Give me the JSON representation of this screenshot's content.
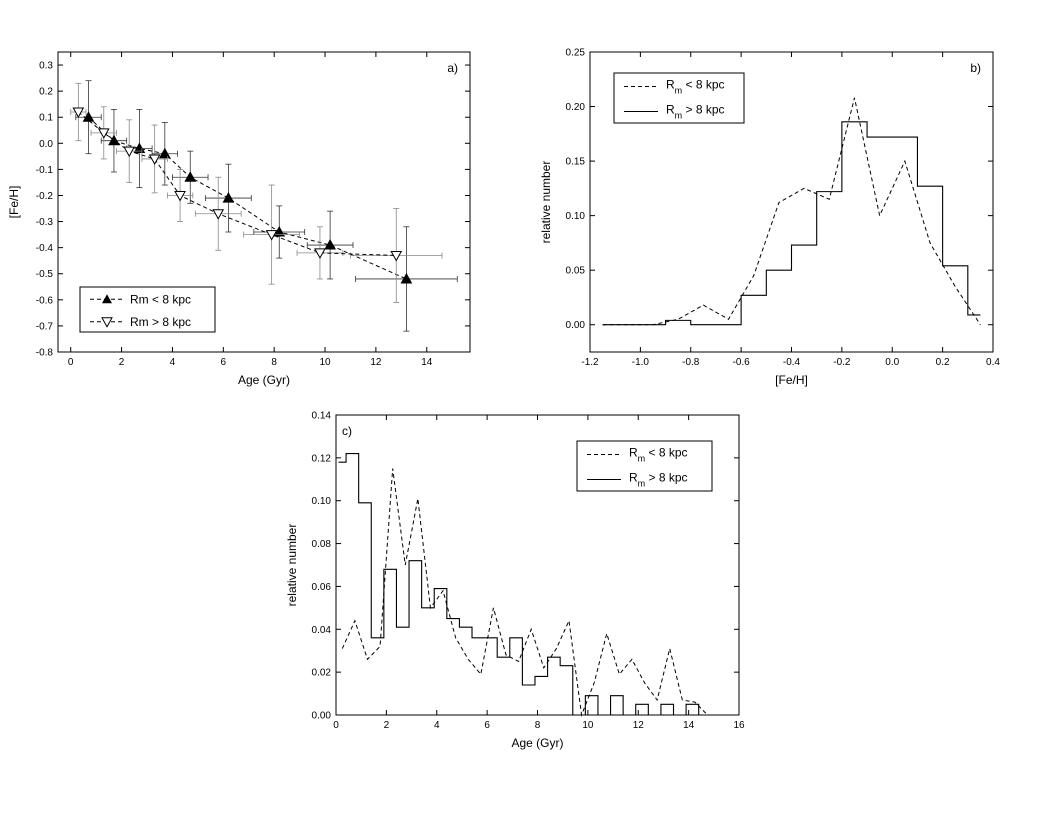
{
  "chart_data": [
    {
      "type": "line",
      "panel_label": "a)",
      "xlabel": "Age (Gyr)",
      "ylabel": "[Fe/H]",
      "xlim": [
        -0.5,
        15.7
      ],
      "ylim": [
        -0.8,
        0.35
      ],
      "x_ticks": [
        "0",
        "2",
        "4",
        "6",
        "8",
        "10",
        "12",
        "14"
      ],
      "y_ticks": [
        "0.3",
        "0.2",
        "0.1",
        "0.0",
        "-0.1",
        "-0.2",
        "-0.3",
        "-0.4",
        "-0.5",
        "-0.6",
        "-0.7",
        "-0.8"
      ],
      "grid": false,
      "legend_position": "bottom-left",
      "series": [
        {
          "name": "Rm < 8 kpc",
          "marker": "filled-triangle-up",
          "line": "dashed",
          "points": [
            {
              "x": 0.7,
              "y": 0.1,
              "xerr": 0.5,
              "yerr": 0.14
            },
            {
              "x": 1.7,
              "y": 0.01,
              "xerr": 0.5,
              "yerr": 0.12
            },
            {
              "x": 2.7,
              "y": -0.02,
              "xerr": 0.5,
              "yerr": 0.15
            },
            {
              "x": 3.7,
              "y": -0.04,
              "xerr": 0.5,
              "yerr": 0.12
            },
            {
              "x": 4.7,
              "y": -0.13,
              "xerr": 0.7,
              "yerr": 0.1
            },
            {
              "x": 6.2,
              "y": -0.21,
              "xerr": 0.9,
              "yerr": 0.13
            },
            {
              "x": 8.2,
              "y": -0.34,
              "xerr": 1.0,
              "yerr": 0.1
            },
            {
              "x": 10.2,
              "y": -0.39,
              "xerr": 0.9,
              "yerr": 0.13
            },
            {
              "x": 13.2,
              "y": -0.52,
              "xerr": 2.0,
              "yerr": 0.2
            }
          ]
        },
        {
          "name": "Rm > 8 kpc",
          "marker": "open-triangle-down",
          "line": "dashed",
          "points": [
            {
              "x": 0.3,
              "y": 0.12,
              "xerr": 0.3,
              "yerr": 0.11
            },
            {
              "x": 1.3,
              "y": 0.04,
              "xerr": 0.5,
              "yerr": 0.1
            },
            {
              "x": 2.3,
              "y": -0.03,
              "xerr": 0.5,
              "yerr": 0.12
            },
            {
              "x": 3.3,
              "y": -0.06,
              "xerr": 0.5,
              "yerr": 0.13
            },
            {
              "x": 4.3,
              "y": -0.2,
              "xerr": 0.5,
              "yerr": 0.1
            },
            {
              "x": 5.8,
              "y": -0.27,
              "xerr": 0.9,
              "yerr": 0.14
            },
            {
              "x": 7.9,
              "y": -0.35,
              "xerr": 1.1,
              "yerr": 0.19
            },
            {
              "x": 9.8,
              "y": -0.42,
              "xerr": 0.9,
              "yerr": 0.1
            },
            {
              "x": 12.8,
              "y": -0.43,
              "xerr": 1.8,
              "yerr": 0.18
            }
          ]
        }
      ]
    },
    {
      "type": "line",
      "panel_label": "b)",
      "xlabel": "[Fe/H]",
      "ylabel": "relative number",
      "xlim": [
        -1.2,
        0.4
      ],
      "ylim": [
        -0.025,
        0.25
      ],
      "x_ticks": [
        "-1.2",
        "-1.0",
        "-0.8",
        "-0.6",
        "-0.4",
        "-0.2",
        "0.0",
        "0.2",
        "0.4"
      ],
      "y_ticks": [
        "0.00",
        "0.05",
        "0.10",
        "0.15",
        "0.20",
        "0.25"
      ],
      "grid": false,
      "legend_position": "top-left",
      "series": [
        {
          "name": "R",
          "name_sub": "m",
          "name_rest": " < 8 kpc",
          "style": "dashed-line",
          "x": [
            -1.15,
            -1.05,
            -0.95,
            -0.85,
            -0.75,
            -0.65,
            -0.55,
            -0.45,
            -0.35,
            -0.25,
            -0.15,
            -0.05,
            0.05,
            0.15,
            0.25,
            0.35
          ],
          "y": [
            0.0,
            0.0,
            0.0,
            0.005,
            0.018,
            0.005,
            0.045,
            0.112,
            0.125,
            0.115,
            0.208,
            0.1,
            0.15,
            0.075,
            0.035,
            0.0
          ]
        },
        {
          "name": "R",
          "name_sub": "m",
          "name_rest": " > 8 kpc",
          "style": "step-histogram",
          "bin_edges": [
            -1.15,
            -1.05,
            -0.95,
            -0.9,
            -0.8,
            -0.7,
            -0.6,
            -0.5,
            -0.4,
            -0.3,
            -0.2,
            -0.1,
            0.0,
            0.1,
            0.2,
            0.3,
            0.35
          ],
          "values": [
            0.0,
            0.0,
            0.0,
            0.004,
            0.0,
            0.0,
            0.027,
            0.05,
            0.073,
            0.122,
            0.186,
            0.172,
            0.172,
            0.127,
            0.054,
            0.009
          ]
        }
      ]
    },
    {
      "type": "line",
      "panel_label": "c)",
      "xlabel": "Age (Gyr)",
      "ylabel": "relative number",
      "xlim": [
        0,
        16
      ],
      "ylim": [
        0,
        0.14
      ],
      "x_ticks": [
        "0",
        "2",
        "4",
        "6",
        "8",
        "10",
        "12",
        "14",
        "16"
      ],
      "y_ticks": [
        "0.00",
        "0.02",
        "0.04",
        "0.06",
        "0.08",
        "0.10",
        "0.12",
        "0.14"
      ],
      "grid": false,
      "legend_position": "top-right",
      "series": [
        {
          "name": "R",
          "name_sub": "m",
          "name_rest": " < 8 kpc",
          "style": "dashed-line",
          "x": [
            0.25,
            0.75,
            1.25,
            1.75,
            2.25,
            2.75,
            3.25,
            3.75,
            4.25,
            4.75,
            5.25,
            5.75,
            6.25,
            6.75,
            7.25,
            7.75,
            8.25,
            8.75,
            9.25,
            9.75,
            10.25,
            10.75,
            11.25,
            11.75,
            12.25,
            12.75,
            13.25,
            13.75,
            14.25,
            14.75
          ],
          "y": [
            0.031,
            0.044,
            0.026,
            0.032,
            0.115,
            0.07,
            0.101,
            0.05,
            0.058,
            0.036,
            0.026,
            0.019,
            0.05,
            0.028,
            0.025,
            0.04,
            0.022,
            0.031,
            0.044,
            0.0,
            0.015,
            0.038,
            0.019,
            0.026,
            0.015,
            0.007,
            0.031,
            0.007,
            0.006,
            0.0
          ]
        },
        {
          "name": "R",
          "name_sub": "m",
          "name_rest": " > 8 kpc",
          "style": "step-histogram",
          "bin_edges": [
            0.1,
            0.4,
            0.9,
            1.4,
            1.9,
            2.4,
            2.9,
            3.4,
            3.9,
            4.4,
            4.9,
            5.4,
            5.9,
            6.4,
            6.9,
            7.4,
            7.9,
            8.4,
            8.9,
            9.4,
            9.9,
            10.4,
            10.9,
            11.4,
            11.9,
            12.4,
            12.9,
            13.4,
            13.9,
            14.4,
            14.9
          ],
          "values": [
            0.118,
            0.122,
            0.099,
            0.036,
            0.068,
            0.041,
            0.072,
            0.05,
            0.059,
            0.045,
            0.041,
            0.036,
            0.036,
            0.027,
            0.036,
            0.014,
            0.018,
            0.027,
            0.023,
            0.0,
            0.009,
            0.0,
            0.009,
            0.0,
            0.005,
            0.0,
            0.005,
            0.0,
            0.005,
            0.0
          ]
        }
      ]
    }
  ]
}
